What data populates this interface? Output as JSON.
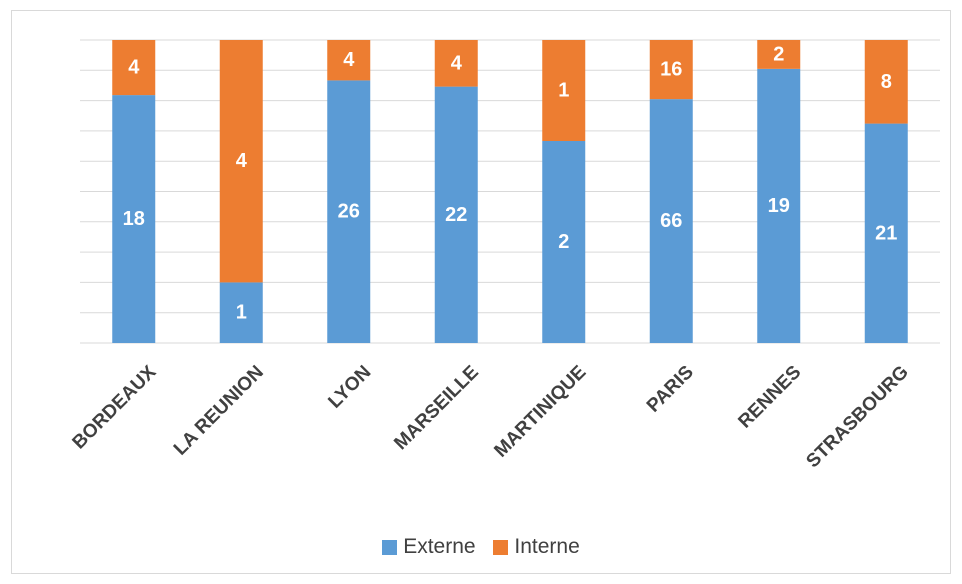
{
  "chart_data": {
    "type": "bar",
    "stacked": "percent",
    "categories": [
      "BORDEAUX",
      "LA REUNION",
      "LYON",
      "MARSEILLE",
      "MARTINIQUE",
      "PARIS",
      "RENNES",
      "STRASBOURG"
    ],
    "series": [
      {
        "name": "Externe",
        "color": "#5b9bd5",
        "values": [
          18,
          1,
          26,
          22,
          2,
          66,
          19,
          21
        ]
      },
      {
        "name": "Interne",
        "color": "#ed7d31",
        "values": [
          4,
          4,
          4,
          4,
          1,
          16,
          2,
          8
        ]
      }
    ],
    "legend_position": "bottom",
    "grid": true,
    "gridline_color": "#d9d9d9"
  }
}
